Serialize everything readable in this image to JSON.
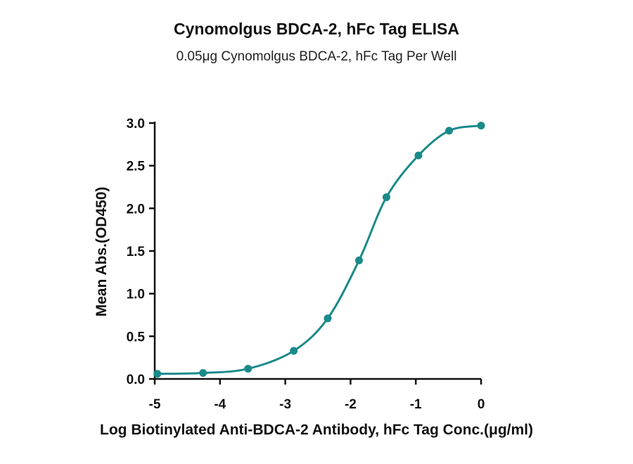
{
  "chart_data": {
    "type": "scatter",
    "title": "Cynomolgus BDCA-2, hFc Tag ELISA",
    "subtitle": "0.05μg Cynomolgus BDCA-2, hFc Tag Per Well",
    "xlabel": "Log Biotinylated Anti-BDCA-2 Antibody, hFc Tag Conc.(μg/ml)",
    "ylabel": "Mean Abs.(OD450)",
    "xlim": [
      -5,
      0
    ],
    "ylim": [
      0,
      3.0
    ],
    "xticks": [
      -5,
      -4,
      -3,
      -2,
      -1,
      0
    ],
    "yticks": [
      0.0,
      0.5,
      1.0,
      1.5,
      2.0,
      2.5,
      3.0
    ],
    "xtick_labels": [
      "-5",
      "-4",
      "-3",
      "-2",
      "-1",
      "0"
    ],
    "ytick_labels": [
      "0.0",
      "0.5",
      "1.0",
      "1.5",
      "2.0",
      "2.5",
      "3.0"
    ],
    "grid": false,
    "color": "#1a8a8a",
    "fit_curve": "sigmoidal",
    "series": [
      {
        "x": [
          -4.96,
          -4.26,
          -3.57,
          -2.87,
          -2.35,
          -1.87,
          -1.45,
          -0.96,
          -0.49,
          0.0
        ],
        "y": [
          0.06,
          0.07,
          0.12,
          0.33,
          0.71,
          1.39,
          2.13,
          2.62,
          2.91,
          2.97
        ]
      }
    ]
  }
}
